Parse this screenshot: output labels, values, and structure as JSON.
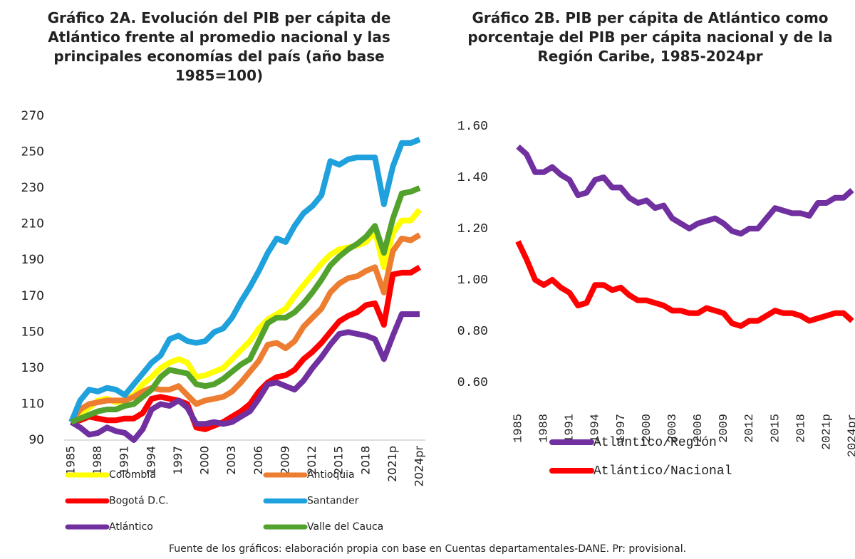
{
  "chart_data": [
    {
      "type": "line",
      "title": "Gráfico 2A. Evolución del PIB per cápita de Atlántico frente al promedio nacional y las principales economías del país (año base 1985=100)",
      "categories": [
        "1985",
        null,
        null,
        "1988",
        null,
        null,
        "1991",
        null,
        null,
        "1994",
        null,
        null,
        "1997",
        null,
        null,
        "2000",
        null,
        null,
        "2003",
        null,
        null,
        "2006",
        null,
        null,
        "2009",
        null,
        null,
        "2012",
        null,
        null,
        "2015",
        null,
        null,
        "2018",
        null,
        null,
        "2021p",
        null,
        null,
        "2024pr"
      ],
      "ylim": [
        90,
        270
      ],
      "yticks": [
        90,
        110,
        130,
        150,
        170,
        190,
        210,
        230,
        250,
        270
      ],
      "grid": false,
      "legend": "bottom",
      "series": [
        {
          "name": "Colombia",
          "color": "#ffff00",
          "values": [
            100,
            105,
            108,
            112,
            113,
            111,
            112,
            115,
            121,
            125,
            130,
            133,
            135,
            133,
            125,
            126,
            128,
            130,
            135,
            140,
            145,
            152,
            157,
            160,
            163,
            170,
            176,
            182,
            188,
            193,
            196,
            197,
            198,
            200,
            206,
            186,
            205,
            212,
            212,
            218
          ]
        },
        {
          "name": "Antioquia",
          "color": "#ed7d31",
          "values": [
            100,
            107,
            110,
            111,
            112,
            112,
            112,
            114,
            117,
            119,
            118,
            118,
            120,
            115,
            110,
            112,
            113,
            114,
            117,
            122,
            128,
            134,
            143,
            144,
            141,
            145,
            153,
            158,
            163,
            172,
            177,
            180,
            181,
            184,
            186,
            172,
            195,
            202,
            201,
            204
          ]
        },
        {
          "name": "Bogotá D.C.",
          "color": "#ff0000",
          "values": [
            100,
            101,
            103,
            102,
            101,
            101,
            102,
            102,
            105,
            113,
            114,
            113,
            112,
            110,
            97,
            96,
            98,
            100,
            103,
            106,
            110,
            117,
            122,
            125,
            126,
            129,
            135,
            139,
            144,
            150,
            156,
            159,
            161,
            165,
            166,
            154,
            182,
            183,
            183,
            186
          ]
        },
        {
          "name": "Santander",
          "color": "#1ea1dc",
          "values": [
            100,
            112,
            118,
            117,
            119,
            118,
            115,
            121,
            127,
            133,
            137,
            146,
            148,
            145,
            144,
            145,
            150,
            152,
            158,
            167,
            175,
            184,
            194,
            202,
            200,
            209,
            216,
            220,
            226,
            245,
            243,
            246,
            247,
            247,
            247,
            221,
            242,
            255,
            255,
            257
          ]
        },
        {
          "name": "Atlántico",
          "color": "#7030a0",
          "values": [
            100,
            97,
            93,
            94,
            97,
            95,
            94,
            90,
            96,
            107,
            110,
            109,
            112,
            108,
            99,
            99,
            100,
            99,
            100,
            103,
            106,
            113,
            121,
            122,
            120,
            118,
            123,
            130,
            136,
            143,
            149,
            150,
            149,
            148,
            146,
            135,
            148,
            160,
            160,
            160
          ]
        },
        {
          "name": "Valle del Cauca",
          "color": "#53a22d",
          "values": [
            100,
            102,
            104,
            106,
            107,
            107,
            109,
            110,
            114,
            118,
            125,
            129,
            128,
            127,
            121,
            120,
            121,
            124,
            128,
            132,
            135,
            145,
            155,
            158,
            158,
            161,
            166,
            172,
            179,
            187,
            192,
            196,
            199,
            203,
            209,
            194,
            213,
            227,
            228,
            230
          ]
        }
      ]
    },
    {
      "type": "line",
      "title": "Gráfico 2B. PIB per cápita de Atlántico como porcentaje del PIB per cápita nacional y de la Región Caribe, 1985-2024pr",
      "categories": [
        "1985",
        null,
        null,
        "1988",
        null,
        null,
        "1991",
        null,
        null,
        "1994",
        null,
        null,
        "1997",
        null,
        null,
        "2000",
        null,
        null,
        "2003",
        null,
        null,
        "2006",
        null,
        null,
        "2009",
        null,
        null,
        "2012",
        null,
        null,
        "2015",
        null,
        null,
        "2018",
        null,
        null,
        "2021p",
        null,
        null,
        "2024pr"
      ],
      "ylim": [
        0.5,
        1.6
      ],
      "yticks": [
        {
          "value": 0.6,
          "label": "0.60"
        },
        {
          "value": 0.8,
          "label": "0.80"
        },
        {
          "value": 1.0,
          "label": "1.00"
        },
        {
          "value": 1.2,
          "label": "1.20"
        },
        {
          "value": 1.4,
          "label": "1.40"
        },
        {
          "value": 1.6,
          "label": "1.60"
        }
      ],
      "grid": false,
      "legend": "bottom",
      "series": [
        {
          "name": "Atlántico/Región",
          "color": "#7030a0",
          "values": [
            1.52,
            1.49,
            1.42,
            1.42,
            1.44,
            1.41,
            1.39,
            1.33,
            1.34,
            1.39,
            1.4,
            1.36,
            1.36,
            1.32,
            1.3,
            1.31,
            1.28,
            1.29,
            1.24,
            1.22,
            1.2,
            1.22,
            1.23,
            1.24,
            1.22,
            1.19,
            1.18,
            1.2,
            1.2,
            1.24,
            1.28,
            1.27,
            1.26,
            1.26,
            1.25,
            1.3,
            1.3,
            1.32,
            1.32,
            1.35
          ]
        },
        {
          "name": "Atlántico/Nacional",
          "color": "#ff0000",
          "values": [
            1.15,
            1.08,
            1.0,
            0.98,
            1.0,
            0.97,
            0.95,
            0.9,
            0.91,
            0.98,
            0.98,
            0.96,
            0.97,
            0.94,
            0.92,
            0.92,
            0.91,
            0.9,
            0.88,
            0.88,
            0.87,
            0.87,
            0.89,
            0.88,
            0.87,
            0.83,
            0.82,
            0.84,
            0.84,
            0.86,
            0.88,
            0.87,
            0.87,
            0.86,
            0.84,
            0.85,
            0.86,
            0.87,
            0.87,
            0.84
          ]
        }
      ]
    }
  ],
  "source": "Fuente de los gráficos: elaboración propia con base en Cuentas departamentales-DANE. Pr: provisional."
}
